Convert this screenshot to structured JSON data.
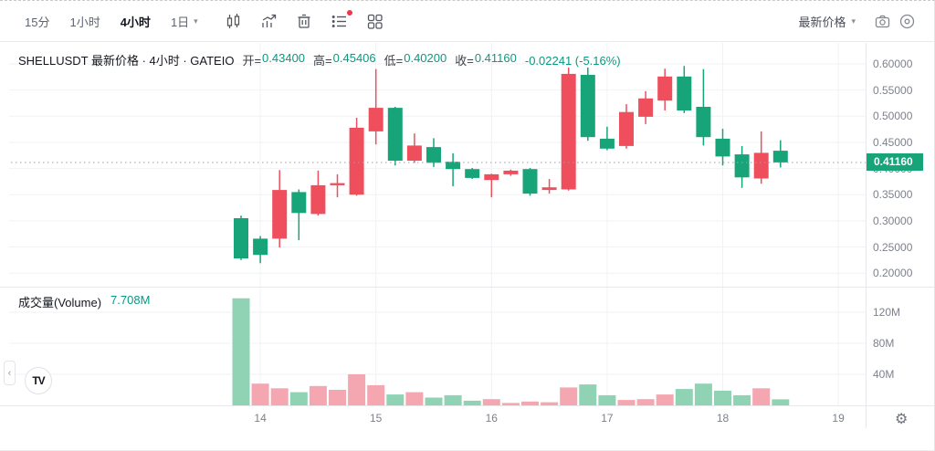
{
  "toolbar": {
    "intervals": [
      {
        "label": "15分",
        "active": false
      },
      {
        "label": "1小时",
        "active": false
      },
      {
        "label": "4小时",
        "active": true
      },
      {
        "label": "1日",
        "active": false,
        "has_caret": true
      }
    ],
    "icons": [
      "candle-style-icon",
      "indicators-icon",
      "trash-icon",
      "object-list-icon",
      "layout-grid-icon"
    ],
    "object_list_badge_color": "#f23645",
    "price_mode_label": "最新价格",
    "right_icons": [
      "camera-icon",
      "target-icon"
    ]
  },
  "legend": {
    "title": "SHELLUSDT 最新价格 · 4小时 · GATEIO",
    "ohlc": [
      {
        "label": "开=",
        "value": "0.43400"
      },
      {
        "label": "高=",
        "value": "0.45406"
      },
      {
        "label": "低=",
        "value": "0.40200"
      },
      {
        "label": "收=",
        "value": "0.41160"
      }
    ],
    "change": "-0.02241 (-5.16%)"
  },
  "volume_legend": {
    "label": "成交量(Volume)",
    "value": "7.708M"
  },
  "price_axis": {
    "current_price_label": "0.41160"
  },
  "bottom_left": {
    "logo_text": "TV",
    "collapse_chevron": "‹"
  },
  "colors": {
    "up": "#ef4f5c",
    "down": "#17a479",
    "vol_up": "#f4a7b0",
    "vol_down": "#90d2b4",
    "value_text": "#089981",
    "badge_bg": "#17a479",
    "grid": "#f0f2f5",
    "axis_text": "#7d818c",
    "price_line": "#9aa0a8"
  },
  "chart_data": {
    "type": "candlestick+volume",
    "symbol": "SHELLUSDT",
    "mode": "最新价格",
    "interval": "4小时",
    "exchange": "GATEIO",
    "last": {
      "open": 0.434,
      "high": 0.45406,
      "low": 0.402,
      "close": 0.4116,
      "change": -0.02241,
      "change_pct": -5.16,
      "volume_m": 7.708
    },
    "up_color_meaning": "red = up, green = down (CN convention)",
    "price_ticks": [
      {
        "label": "0.60000",
        "value": 0.6
      },
      {
        "label": "0.55000",
        "value": 0.55
      },
      {
        "label": "0.50000",
        "value": 0.5
      },
      {
        "label": "0.45000",
        "value": 0.45
      },
      {
        "label": "0.40000",
        "value": 0.4
      },
      {
        "label": "0.35000",
        "value": 0.35
      },
      {
        "label": "0.30000",
        "value": 0.3
      },
      {
        "label": "0.25000",
        "value": 0.25
      },
      {
        "label": "0.20000",
        "value": 0.2
      }
    ],
    "volume_ticks": [
      {
        "label": "120M",
        "value": 120
      },
      {
        "label": "80M",
        "value": 80
      },
      {
        "label": "40M",
        "value": 40
      }
    ],
    "time_ticks": [
      {
        "label": "14",
        "index": 1
      },
      {
        "label": "15",
        "index": 7
      },
      {
        "label": "16",
        "index": 13
      },
      {
        "label": "17",
        "index": 19
      },
      {
        "label": "18",
        "index": 25
      },
      {
        "label": "19",
        "index": 31
      }
    ],
    "candles": [
      {
        "o": 0.305,
        "h": 0.31,
        "l": 0.225,
        "c": 0.228,
        "v": 138,
        "dir": "down",
        "vdir": "down"
      },
      {
        "o": 0.266,
        "h": 0.271,
        "l": 0.219,
        "c": 0.235,
        "v": 28,
        "dir": "down",
        "vdir": "up"
      },
      {
        "o": 0.266,
        "h": 0.397,
        "l": 0.249,
        "c": 0.359,
        "v": 22,
        "dir": "up",
        "vdir": "up"
      },
      {
        "o": 0.355,
        "h": 0.36,
        "l": 0.263,
        "c": 0.315,
        "v": 17,
        "dir": "down",
        "vdir": "down"
      },
      {
        "o": 0.313,
        "h": 0.396,
        "l": 0.31,
        "c": 0.368,
        "v": 25,
        "dir": "up",
        "vdir": "up"
      },
      {
        "o": 0.368,
        "h": 0.389,
        "l": 0.345,
        "c": 0.372,
        "v": 20,
        "dir": "up",
        "vdir": "up"
      },
      {
        "o": 0.35,
        "h": 0.497,
        "l": 0.348,
        "c": 0.478,
        "v": 40,
        "dir": "up",
        "vdir": "up"
      },
      {
        "o": 0.471,
        "h": 0.59,
        "l": 0.446,
        "c": 0.516,
        "v": 26,
        "dir": "up",
        "vdir": "up"
      },
      {
        "o": 0.516,
        "h": 0.518,
        "l": 0.406,
        "c": 0.415,
        "v": 14,
        "dir": "down",
        "vdir": "down"
      },
      {
        "o": 0.415,
        "h": 0.467,
        "l": 0.411,
        "c": 0.444,
        "v": 17,
        "dir": "up",
        "vdir": "up"
      },
      {
        "o": 0.441,
        "h": 0.458,
        "l": 0.403,
        "c": 0.411,
        "v": 10,
        "dir": "down",
        "vdir": "down"
      },
      {
        "o": 0.413,
        "h": 0.429,
        "l": 0.366,
        "c": 0.399,
        "v": 13,
        "dir": "down",
        "vdir": "down"
      },
      {
        "o": 0.399,
        "h": 0.401,
        "l": 0.38,
        "c": 0.382,
        "v": 6,
        "dir": "down",
        "vdir": "down"
      },
      {
        "o": 0.378,
        "h": 0.39,
        "l": 0.345,
        "c": 0.389,
        "v": 8,
        "dir": "up",
        "vdir": "up"
      },
      {
        "o": 0.389,
        "h": 0.398,
        "l": 0.386,
        "c": 0.396,
        "v": 3,
        "dir": "up",
        "vdir": "up"
      },
      {
        "o": 0.399,
        "h": 0.401,
        "l": 0.348,
        "c": 0.352,
        "v": 5,
        "dir": "down",
        "vdir": "up"
      },
      {
        "o": 0.359,
        "h": 0.38,
        "l": 0.352,
        "c": 0.364,
        "v": 4,
        "dir": "up",
        "vdir": "up"
      },
      {
        "o": 0.36,
        "h": 0.593,
        "l": 0.358,
        "c": 0.581,
        "v": 23,
        "dir": "up",
        "vdir": "up"
      },
      {
        "o": 0.579,
        "h": 0.593,
        "l": 0.453,
        "c": 0.46,
        "v": 27,
        "dir": "down",
        "vdir": "down"
      },
      {
        "o": 0.457,
        "h": 0.48,
        "l": 0.435,
        "c": 0.438,
        "v": 13,
        "dir": "down",
        "vdir": "down"
      },
      {
        "o": 0.443,
        "h": 0.523,
        "l": 0.438,
        "c": 0.508,
        "v": 7,
        "dir": "up",
        "vdir": "up"
      },
      {
        "o": 0.499,
        "h": 0.548,
        "l": 0.485,
        "c": 0.534,
        "v": 8,
        "dir": "up",
        "vdir": "up"
      },
      {
        "o": 0.53,
        "h": 0.591,
        "l": 0.511,
        "c": 0.576,
        "v": 14,
        "dir": "up",
        "vdir": "up"
      },
      {
        "o": 0.576,
        "h": 0.596,
        "l": 0.506,
        "c": 0.511,
        "v": 21,
        "dir": "down",
        "vdir": "down"
      },
      {
        "o": 0.518,
        "h": 0.59,
        "l": 0.444,
        "c": 0.46,
        "v": 28,
        "dir": "down",
        "vdir": "down"
      },
      {
        "o": 0.457,
        "h": 0.476,
        "l": 0.406,
        "c": 0.423,
        "v": 19,
        "dir": "down",
        "vdir": "down"
      },
      {
        "o": 0.427,
        "h": 0.443,
        "l": 0.363,
        "c": 0.383,
        "v": 13,
        "dir": "down",
        "vdir": "down"
      },
      {
        "o": 0.381,
        "h": 0.471,
        "l": 0.371,
        "c": 0.43,
        "v": 22,
        "dir": "up",
        "vdir": "up"
      },
      {
        "o": 0.434,
        "h": 0.45406,
        "l": 0.402,
        "c": 0.4116,
        "v": 7.708,
        "dir": "down",
        "vdir": "down"
      }
    ]
  }
}
